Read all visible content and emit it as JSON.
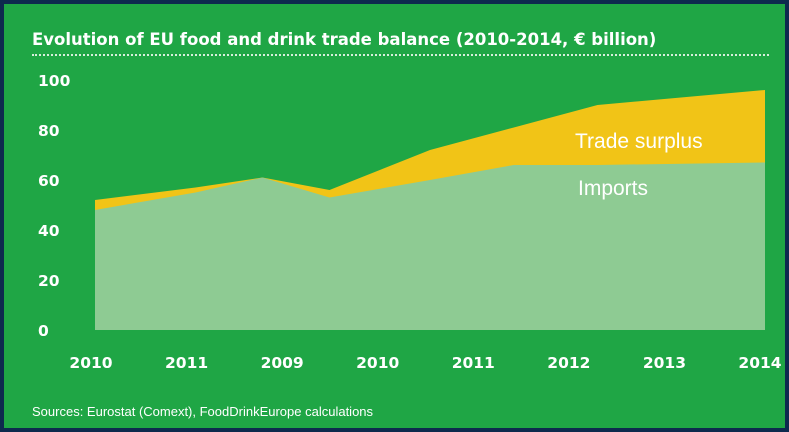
{
  "chart_data": {
    "type": "area",
    "title": "Evolution of EU food and drink trade balance (2010-2014, € billion)",
    "source": "Sources: Eurostat (Comext), FoodDrinkEurope calculations",
    "categories": [
      "2010",
      "2011",
      "2009",
      "2010",
      "2011",
      "2012",
      "2013",
      "2014"
    ],
    "x": [
      2010,
      2011,
      2012,
      2013,
      2014
    ],
    "xlim": [
      2010,
      2014
    ],
    "ylim": [
      0,
      100
    ],
    "yticks": [
      0,
      20,
      40,
      60,
      80,
      100
    ],
    "grid": false,
    "series": [
      {
        "name": "Imports",
        "color": "#8ecb93",
        "x": [
          2010,
          2010.6,
          2011,
          2011.4,
          2012,
          2012.5,
          2013,
          2014
        ],
        "values": [
          48,
          55,
          61,
          53,
          60,
          66,
          66,
          67
        ]
      },
      {
        "name": "Trade surplus",
        "color": "#f1c417",
        "x": [
          2010,
          2010.6,
          2011,
          2011.4,
          2012,
          2012.5,
          2013,
          2014
        ],
        "values": [
          52,
          57,
          61,
          56,
          72,
          81,
          90,
          96
        ]
      }
    ]
  }
}
